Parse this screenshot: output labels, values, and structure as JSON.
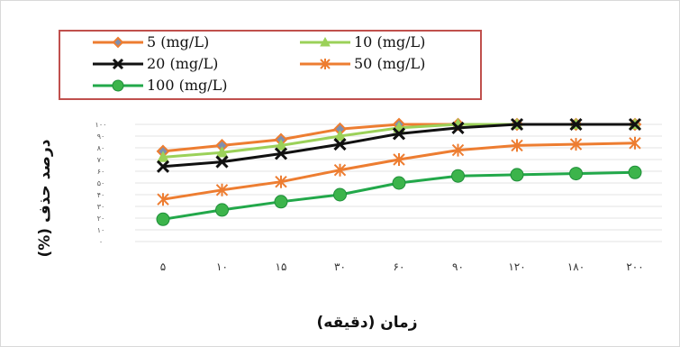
{
  "chart_data": {
    "type": "line",
    "xlabel": "زمان (دقیقه)",
    "ylabel": "درصد حذف (%)",
    "categories": [
      "۵",
      "۱۰",
      "۱۵",
      "۳۰",
      "۶۰",
      "۹۰",
      "۱۲۰",
      "۱۸۰",
      "۲۰۰"
    ],
    "y_ticks": [
      "۰",
      "۱۰",
      "۲۰",
      "۳۰",
      "۴۰",
      "۵۰",
      "۶۰",
      "۷۰",
      "۸۰",
      "۹۰",
      "۱۰۰"
    ],
    "ylim": [
      0,
      100
    ],
    "grid": true,
    "legend_position": "top",
    "series": [
      {
        "name": "5 (mg/L)",
        "color": "#ed7d31",
        "marker": "diamond",
        "marker_color": "#7f8fb0",
        "values": [
          77,
          82,
          87,
          96,
          100,
          100,
          100,
          100,
          100
        ]
      },
      {
        "name": "10 (mg/L)",
        "color": "#9bd159",
        "marker": "triangle",
        "marker_color": "#9bd159",
        "values": [
          72,
          76,
          82,
          90,
          97,
          100,
          100,
          100,
          100
        ]
      },
      {
        "name": "20 (mg/L)",
        "color": "#111111",
        "marker": "x",
        "marker_color": "#111111",
        "values": [
          64,
          68,
          75,
          83,
          92,
          97,
          100,
          100,
          100
        ]
      },
      {
        "name": "50 (mg/L)",
        "color": "#ed7d31",
        "marker": "asterisk",
        "marker_color": "#ed7d31",
        "values": [
          36,
          44,
          51,
          61,
          70,
          78,
          82,
          83,
          84
        ]
      },
      {
        "name": "100 (mg/L)",
        "color": "#22a84a",
        "marker": "circle",
        "marker_color": "#3cb44b",
        "values": [
          19,
          27,
          34,
          40,
          50,
          56,
          57,
          58,
          59
        ]
      }
    ]
  }
}
